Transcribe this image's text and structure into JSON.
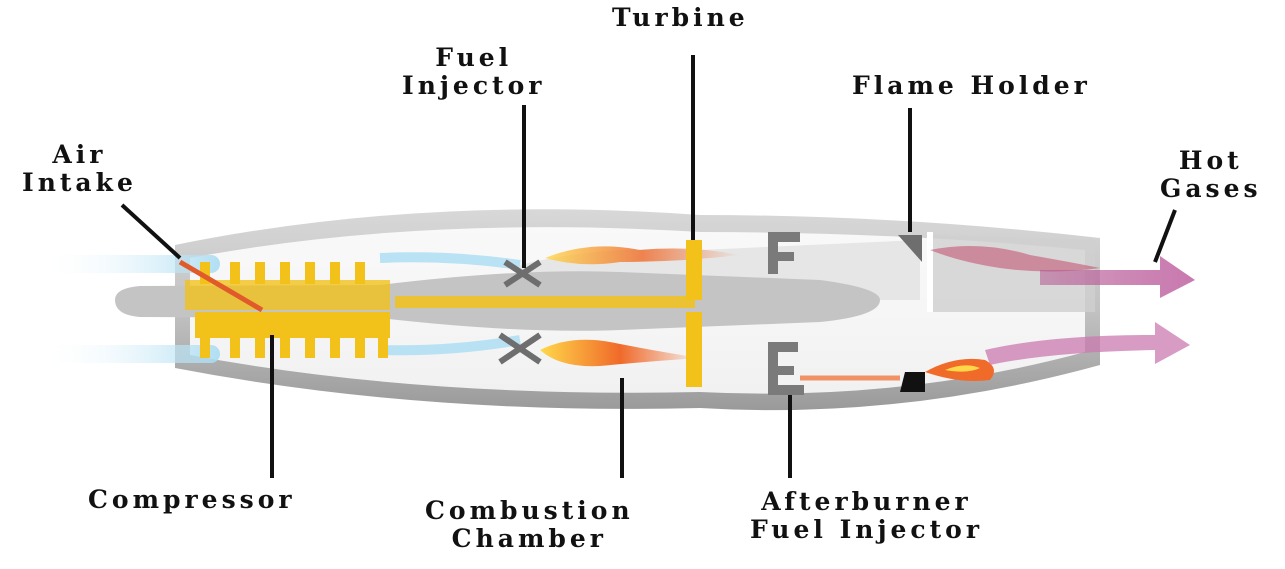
{
  "labels": {
    "turbine": "Turbine",
    "fuel_injector": [
      "Fuel",
      "Injector"
    ],
    "flame_holder": "Flame Holder",
    "air_intake": [
      "Air",
      "Intake"
    ],
    "hot_gases": [
      "Hot",
      "Gases"
    ],
    "compressor": "Compressor",
    "combustion_chamber": [
      "Combustion",
      "Chamber"
    ],
    "afterburner_fuel_injector": [
      "Afterburner",
      "Fuel Injector"
    ]
  },
  "colors": {
    "casing": "#b9b9b9",
    "casing_dark": "#8f8f8f",
    "compressor": "#f2c21b",
    "flame": "#f06a2a",
    "exhaust": "#c97ab0",
    "intake_air": "#bfe6f7",
    "leader_line": "#111111"
  }
}
